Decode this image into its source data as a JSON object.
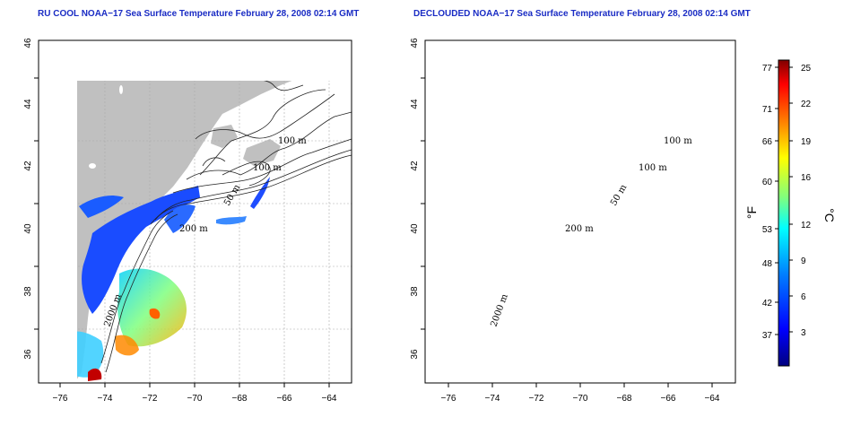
{
  "titles": {
    "left": "RU COOL NOAA−17 Sea Surface Temperature February 28, 2008 02:14 GMT",
    "right": "DECLOUDED NOAA−17 Sea Surface Temperature February 28, 2008 02:14 GMT"
  },
  "axes": {
    "lat_ticks": [
      "36",
      "38",
      "40",
      "42",
      "44",
      "46"
    ],
    "lon_ticks": [
      "−76",
      "−74",
      "−72",
      "−70",
      "−68",
      "−66",
      "−64"
    ]
  },
  "contour_labels": {
    "m100_a": "100 m",
    "m100_b": "100 m",
    "m50": "50 m",
    "m200": "200 m",
    "m2000": "2000 m"
  },
  "colorbar": {
    "fahrenheit_ticks": [
      "77",
      "71",
      "66",
      "60",
      "53",
      "48",
      "42",
      "37"
    ],
    "celsius_ticks": [
      "25",
      "22",
      "19",
      "16",
      "12",
      "9",
      "6",
      "3"
    ],
    "fahrenheit_unit": "°F",
    "celsius_unit": "°C"
  },
  "colors": {
    "land": "#c0c0c0",
    "title": "#1a2cc4",
    "scale": [
      "#00007f",
      "#0000ff",
      "#007fff",
      "#00ffff",
      "#7fff7f",
      "#ffff00",
      "#ff7f00",
      "#ff0000",
      "#7f0000"
    ]
  }
}
